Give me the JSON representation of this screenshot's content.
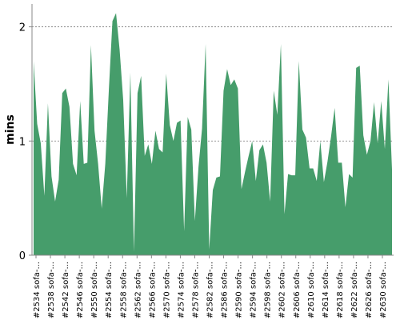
{
  "chart_data": {
    "type": "area",
    "ylabel": "mins",
    "xlabel": "",
    "ylim": [
      0,
      2.2
    ],
    "yticks": [
      "0",
      "1",
      "2"
    ],
    "grid": "horizontal dashed",
    "fill_color": "#469d6b",
    "x_tick_labels": [
      "#2534 sofa-...",
      "#2538 sofa-...",
      "#2542 sofa-...",
      "#2546 sofa-...",
      "#2550 sofa-...",
      "#2554 sofa-...",
      "#2558 sofa-...",
      "#2562 sofa-...",
      "#2566 sofa-...",
      "#2570 sofa-...",
      "#2574 sofa-...",
      "#2578 sofa-...",
      "#2582 sofa-...",
      "#2586 sofa-...",
      "#2590 sofa-...",
      "#2594 sofa-...",
      "#2598 sofa-...",
      "#2602 sofa-...",
      "#2606 sofa-...",
      "#2610 sofa-...",
      "#2614 sofa-...",
      "#2618 sofa-...",
      "#2622 sofa-...",
      "#2626 sofa-...",
      "#2630 sofa-..."
    ],
    "x_start": 2534,
    "x_step": 0.5,
    "values": [
      1.7,
      1.15,
      0.98,
      0.52,
      1.33,
      0.69,
      0.47,
      0.66,
      1.42,
      1.46,
      1.3,
      0.8,
      0.7,
      1.35,
      0.8,
      0.81,
      1.84,
      1.09,
      0.8,
      0.41,
      0.8,
      1.45,
      2.05,
      2.12,
      1.8,
      1.36,
      0.5,
      1.6,
      0.03,
      1.42,
      1.57,
      0.87,
      0.97,
      0.8,
      1.09,
      0.93,
      0.9,
      1.59,
      1.14,
      1.0,
      1.16,
      1.18,
      0.21,
      1.21,
      1.1,
      0.3,
      0.77,
      1.11,
      1.85,
      0.05,
      0.57,
      0.68,
      0.69,
      1.44,
      1.63,
      1.49,
      1.54,
      1.46,
      0.58,
      0.73,
      0.87,
      1.0,
      0.65,
      0.92,
      0.97,
      0.81,
      0.47,
      1.44,
      1.23,
      1.85,
      0.36,
      0.71,
      0.7,
      0.7,
      1.7,
      1.1,
      1.03,
      0.76,
      0.76,
      0.65,
      1.0,
      0.64,
      0.82,
      1.04,
      1.29,
      0.81,
      0.81,
      0.42,
      0.71,
      0.68,
      1.64,
      1.66,
      1.05,
      0.88,
      1.0,
      1.34,
      0.98,
      1.35,
      0.93,
      1.54,
      0.75
    ]
  }
}
